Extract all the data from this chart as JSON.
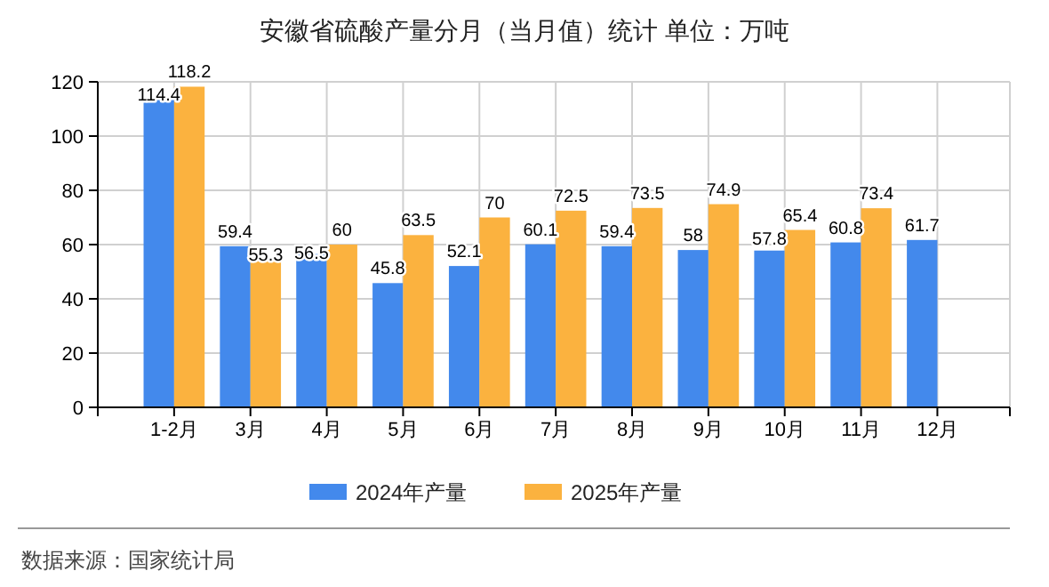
{
  "chart_data": {
    "type": "bar",
    "title": "安徽省硫酸产量分月（当月值）统计 单位：万吨",
    "categories": [
      "1-2月",
      "3月",
      "4月",
      "5月",
      "6月",
      "7月",
      "8月",
      "9月",
      "10月",
      "11月",
      "12月"
    ],
    "series": [
      {
        "name": "2024年产量",
        "color": "#4389ec",
        "values": [
          114.4,
          59.4,
          56.5,
          45.8,
          52.1,
          60.1,
          59.4,
          58,
          57.8,
          60.8,
          61.7
        ]
      },
      {
        "name": "2025年产量",
        "color": "#fbb23f",
        "values": [
          118.2,
          55.3,
          60,
          63.5,
          70,
          72.5,
          73.5,
          74.9,
          65.4,
          73.4,
          null
        ]
      }
    ],
    "ylim": [
      0,
      120
    ],
    "yticks": [
      0,
      20,
      40,
      60,
      80,
      100,
      120
    ],
    "grid": true,
    "legend": "bottom",
    "data_labels": true,
    "annotations": [
      "数据来源：国家统计局"
    ]
  }
}
